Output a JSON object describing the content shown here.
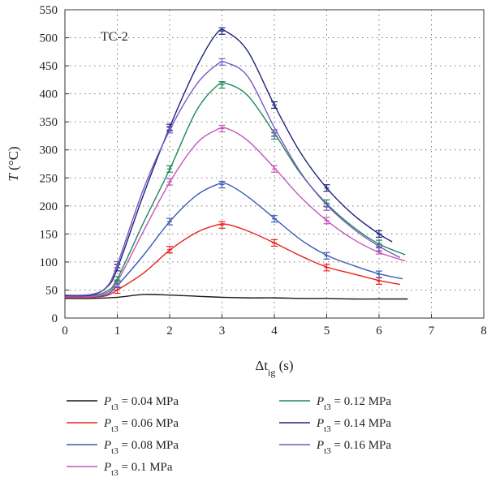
{
  "chart_data": {
    "type": "line",
    "panel_label": "TC-2",
    "xlabel": {
      "main": "Δt",
      "sub": "ig",
      "unit": " (s)"
    },
    "ylabel": {
      "main": "T",
      "unit": " (°C)"
    },
    "xlim": [
      0,
      8
    ],
    "ylim": [
      0,
      550
    ],
    "x_ticks": [
      "0",
      "1",
      "2",
      "3",
      "4",
      "5",
      "6",
      "7",
      "8"
    ],
    "y_ticks": [
      "0",
      "50",
      "100",
      "150",
      "200",
      "250",
      "300",
      "350",
      "400",
      "450",
      "500",
      "550"
    ],
    "grid": true,
    "legend_position": "bottom",
    "series": [
      {
        "name": {
          "main": "P",
          "sub": "t3",
          "rest": " = 0.04 MPa"
        },
        "color": "#1a1a1a",
        "x": [
          0,
          0.5,
          1,
          1.5,
          2,
          2.5,
          3,
          3.5,
          4,
          4.5,
          5,
          5.5,
          6,
          6.55
        ],
        "y": [
          35,
          35,
          37,
          42,
          41,
          39,
          37,
          36,
          36,
          35,
          35,
          34,
          34,
          34
        ],
        "markers": []
      },
      {
        "name": {
          "main": "P",
          "sub": "t3",
          "rest": " = 0.06 MPa"
        },
        "color": "#e8221b",
        "x": [
          0,
          0.5,
          0.8,
          1,
          1.5,
          2,
          2.5,
          2.9,
          3.1,
          3.5,
          4,
          4.5,
          5,
          5.5,
          6,
          6.4
        ],
        "y": [
          37,
          37,
          40,
          50,
          80,
          121,
          152,
          166,
          167,
          155,
          134,
          111,
          91,
          79,
          67,
          60
        ],
        "markers": [
          [
            1,
            50
          ],
          [
            2,
            122
          ],
          [
            3,
            166
          ],
          [
            4,
            134
          ],
          [
            5,
            90
          ],
          [
            6,
            66
          ]
        ]
      },
      {
        "name": {
          "main": "P",
          "sub": "t3",
          "rest": " = 0.08 MPa"
        },
        "color": "#3b5bb5",
        "x": [
          0,
          0.5,
          0.8,
          1,
          1.5,
          2,
          2.5,
          2.9,
          3.1,
          3.5,
          4,
          4.5,
          5,
          5.5,
          6,
          6.45
        ],
        "y": [
          38,
          38,
          42,
          58,
          112,
          172,
          218,
          238,
          239,
          216,
          178,
          140,
          112,
          94,
          79,
          70
        ],
        "markers": [
          [
            1,
            60
          ],
          [
            2,
            172
          ],
          [
            3,
            238
          ],
          [
            4,
            177
          ],
          [
            5,
            111
          ],
          [
            6,
            78
          ]
        ]
      },
      {
        "name": {
          "main": "P",
          "sub": "t3",
          "rest": " = 0.1 MPa"
        },
        "color": "#c655b8",
        "x": [
          0,
          0.5,
          0.8,
          1,
          1.5,
          2,
          2.5,
          2.9,
          3.1,
          3.5,
          4,
          4.5,
          5,
          5.5,
          6,
          6.5
        ],
        "y": [
          38,
          38,
          45,
          65,
          155,
          242,
          310,
          336,
          338,
          316,
          268,
          216,
          174,
          141,
          117,
          102
        ],
        "markers": [
          [
            1,
            62
          ],
          [
            2,
            243
          ],
          [
            3,
            338
          ],
          [
            4,
            266
          ],
          [
            5,
            174
          ],
          [
            6,
            120
          ]
        ]
      },
      {
        "name": {
          "main": "P",
          "sub": "t3",
          "rest": " = 0.12 MPa"
        },
        "color": "#1e8a5a",
        "x": [
          0,
          0.5,
          0.8,
          1,
          1.5,
          2,
          2.5,
          2.9,
          3.1,
          3.5,
          4,
          4.5,
          5,
          5.5,
          6,
          6.5
        ],
        "y": [
          40,
          40,
          48,
          70,
          170,
          265,
          368,
          414,
          418,
          396,
          330,
          258,
          204,
          163,
          132,
          113
        ],
        "markers": [
          [
            1,
            68
          ],
          [
            2,
            266
          ],
          [
            3,
            416
          ],
          [
            4,
            325
          ],
          [
            5,
            205
          ],
          [
            6,
            133
          ]
        ]
      },
      {
        "name": {
          "main": "P",
          "sub": "t3",
          "rest": " = 0.14 MPa"
        },
        "color": "#1c237a",
        "x": [
          0,
          0.5,
          0.8,
          1,
          1.5,
          2,
          2.5,
          2.9,
          3.1,
          3.5,
          4,
          4.5,
          5,
          5.5,
          6,
          6.25
        ],
        "y": [
          40,
          41,
          55,
          88,
          220,
          340,
          445,
          508,
          510,
          475,
          380,
          295,
          232,
          185,
          150,
          136
        ],
        "markers": [
          [
            1,
            90
          ],
          [
            2,
            340
          ],
          [
            3,
            512
          ],
          [
            4,
            380
          ],
          [
            5,
            232
          ],
          [
            6,
            150
          ]
        ]
      },
      {
        "name": {
          "main": "P",
          "sub": "t3",
          "rest": " = 0.16 MPa"
        },
        "color": "#7a56c0",
        "x": [
          0,
          0.5,
          0.8,
          1,
          1.5,
          2,
          2.5,
          2.9,
          3.1,
          3.5,
          4,
          4.5,
          5,
          5.5,
          6,
          6.4
        ],
        "y": [
          41,
          42,
          56,
          95,
          230,
          335,
          415,
          452,
          455,
          430,
          340,
          260,
          202,
          160,
          128,
          108
        ],
        "markers": [
          [
            1,
            95
          ],
          [
            2,
            336
          ],
          [
            3,
            457
          ],
          [
            4,
            330
          ],
          [
            5,
            198
          ],
          [
            6,
            125
          ]
        ]
      }
    ]
  }
}
